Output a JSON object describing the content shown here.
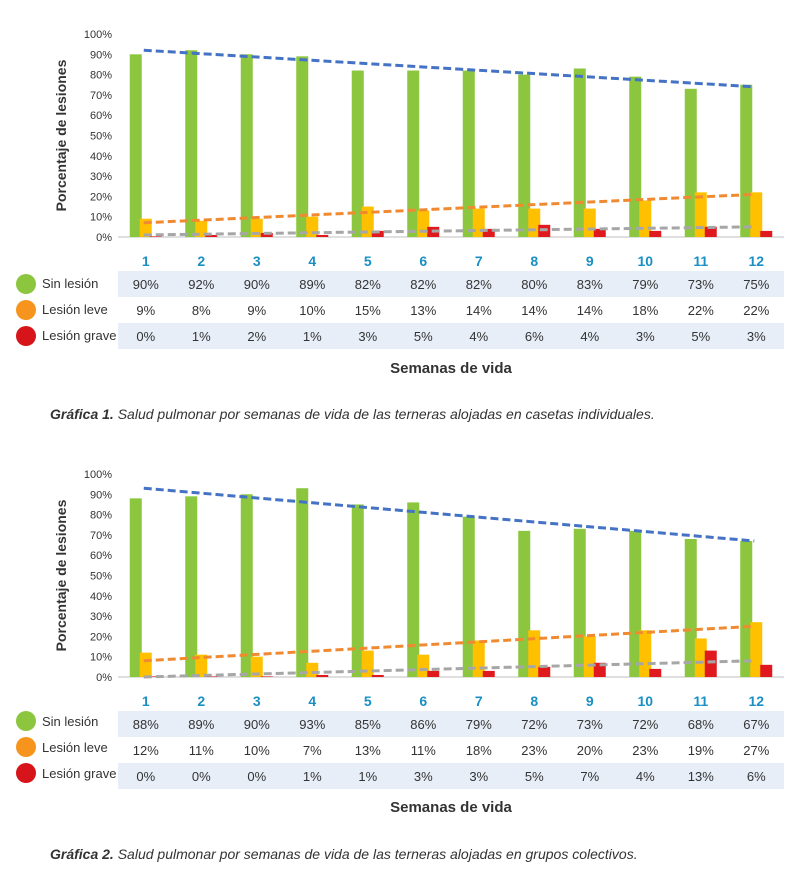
{
  "colors": {
    "sin_lesion": "#8cc63f",
    "lesion_leve": "#ffc000",
    "lesion_grave": "#e0191e",
    "trend_sin": "#4472c4",
    "trend_leve": "#f08a30",
    "trend_grave": "#a6a6a6",
    "week_labels": "#1a8fc4",
    "legend_sin": "#8cc63f",
    "legend_leve": "#f7941d",
    "legend_grave": "#d7141a",
    "table_band": "#e7eef8"
  },
  "chart_data": [
    {
      "type": "bar",
      "ylabel": "Porcentaje de lesiones",
      "xlabel": "Semanas de vida",
      "ylim": [
        0,
        100
      ],
      "yticks": [
        "0%",
        "10%",
        "20%",
        "30%",
        "40%",
        "50%",
        "60%",
        "70%",
        "80%",
        "90%",
        "100%"
      ],
      "categories": [
        "1",
        "2",
        "3",
        "4",
        "5",
        "6",
        "7",
        "8",
        "9",
        "10",
        "11",
        "12"
      ],
      "series": [
        {
          "name": "Sin lesión",
          "values": [
            90,
            92,
            90,
            89,
            82,
            82,
            82,
            80,
            83,
            79,
            73,
            75
          ],
          "labels": [
            "90%",
            "92%",
            "90%",
            "89%",
            "82%",
            "82%",
            "82%",
            "80%",
            "83%",
            "79%",
            "73%",
            "75%"
          ],
          "trend": [
            92,
            74
          ]
        },
        {
          "name": "Lesión leve",
          "values": [
            9,
            8,
            9,
            10,
            15,
            13,
            14,
            14,
            14,
            18,
            22,
            22
          ],
          "labels": [
            "9%",
            "8%",
            "9%",
            "10%",
            "15%",
            "13%",
            "14%",
            "14%",
            "14%",
            "18%",
            "22%",
            "22%"
          ],
          "trend": [
            7,
            21
          ]
        },
        {
          "name": "Lesión grave",
          "values": [
            0,
            1,
            2,
            1,
            3,
            5,
            4,
            6,
            4,
            3,
            5,
            3
          ],
          "labels": [
            "0%",
            "1%",
            "2%",
            "1%",
            "3%",
            "5%",
            "4%",
            "6%",
            "4%",
            "3%",
            "5%",
            "3%"
          ],
          "trend": [
            1,
            5
          ]
        }
      ],
      "caption_bold": "Gráfica 1.",
      "caption_text": " Salud pulmonar por semanas de vida de las terneras alojadas en casetas individuales."
    },
    {
      "type": "bar",
      "ylabel": "Porcentaje de lesiones",
      "xlabel": "Semanas de vida",
      "ylim": [
        0,
        100
      ],
      "yticks": [
        "0%",
        "10%",
        "20%",
        "30%",
        "40%",
        "50%",
        "60%",
        "70%",
        "80%",
        "90%",
        "100%"
      ],
      "categories": [
        "1",
        "2",
        "3",
        "4",
        "5",
        "6",
        "7",
        "8",
        "9",
        "10",
        "11",
        "12"
      ],
      "series": [
        {
          "name": "Sin lesión",
          "values": [
            88,
            89,
            90,
            93,
            85,
            86,
            79,
            72,
            73,
            72,
            68,
            67
          ],
          "labels": [
            "88%",
            "89%",
            "90%",
            "93%",
            "85%",
            "86%",
            "79%",
            "72%",
            "73%",
            "72%",
            "68%",
            "67%"
          ],
          "trend": [
            93,
            67
          ]
        },
        {
          "name": "Lesión leve",
          "values": [
            12,
            11,
            10,
            7,
            13,
            11,
            18,
            23,
            20,
            23,
            19,
            27
          ],
          "labels": [
            "12%",
            "11%",
            "10%",
            "7%",
            "13%",
            "11%",
            "18%",
            "23%",
            "20%",
            "23%",
            "19%",
            "27%"
          ],
          "trend": [
            8,
            25
          ]
        },
        {
          "name": "Lesión grave",
          "values": [
            0,
            0,
            0,
            1,
            1,
            3,
            3,
            5,
            7,
            4,
            13,
            6
          ],
          "labels": [
            "0%",
            "0%",
            "0%",
            "1%",
            "1%",
            "3%",
            "3%",
            "5%",
            "7%",
            "4%",
            "13%",
            "6%"
          ],
          "trend": [
            0,
            8
          ]
        }
      ],
      "caption_bold": "Gráfica 2.",
      "caption_text": " Salud pulmonar por semanas de vida de las terneras alojadas en grupos colectivos."
    }
  ]
}
